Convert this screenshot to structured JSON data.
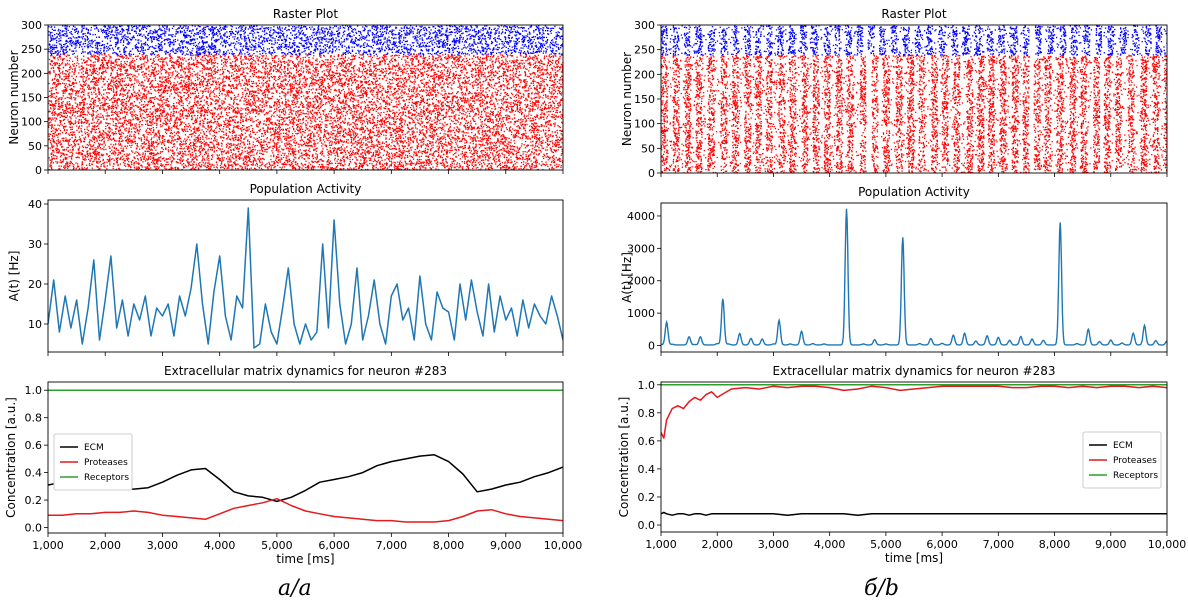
{
  "figure": {
    "caption_left": "а/a",
    "caption_right": "б/b"
  },
  "colors": {
    "inhibitory": "#0000ff",
    "excitatory": "#ff0000",
    "activity": "#1f77b4",
    "ecm": "#000000",
    "proteases": "#e41a1c",
    "receptors": "#2ca02c"
  },
  "chart_data": [
    {
      "panel": "a",
      "type": "scatter",
      "title": "Raster Plot",
      "xlabel": "",
      "ylabel": "Neuron number",
      "xlim": [
        1000,
        10000
      ],
      "ylim": [
        0,
        300
      ],
      "yticks": [
        0,
        50,
        100,
        150,
        200,
        250,
        300
      ],
      "ytick_labels": [
        "0",
        "50",
        "100",
        "150",
        "200",
        "250",
        "300"
      ],
      "series": [
        {
          "neurons": [
            0,
            240
          ],
          "color": "#ff0000",
          "pattern": "dense asynchronous"
        },
        {
          "neurons": [
            240,
            300
          ],
          "color": "#0000ff",
          "pattern": "dense asynchronous"
        }
      ]
    },
    {
      "panel": "a",
      "type": "line",
      "title": "Population Activity",
      "xlabel": "",
      "ylabel": "A(t) [Hz]",
      "xlim": [
        1000,
        10000
      ],
      "ylim": [
        3,
        41
      ],
      "yticks": [
        10,
        20,
        30,
        40
      ],
      "ytick_labels": [
        "10",
        "20",
        "30",
        "40"
      ],
      "x": [
        1000,
        1100,
        1200,
        1300,
        1400,
        1500,
        1600,
        1700,
        1800,
        1900,
        2000,
        2100,
        2200,
        2300,
        2400,
        2500,
        2600,
        2700,
        2800,
        2900,
        3000,
        3100,
        3200,
        3300,
        3400,
        3500,
        3600,
        3700,
        3800,
        3900,
        4000,
        4100,
        4200,
        4300,
        4400,
        4500,
        4600,
        4700,
        4800,
        4900,
        5000,
        5100,
        5200,
        5300,
        5400,
        5500,
        5600,
        5700,
        5800,
        5900,
        6000,
        6100,
        6200,
        6300,
        6400,
        6500,
        6600,
        6700,
        6800,
        6900,
        7000,
        7100,
        7200,
        7300,
        7400,
        7500,
        7600,
        7700,
        7800,
        7900,
        8000,
        8100,
        8200,
        8300,
        8400,
        8500,
        8600,
        8700,
        8800,
        8900,
        9000,
        9100,
        9200,
        9300,
        9400,
        9500,
        9600,
        9700,
        9800,
        9900,
        10000
      ],
      "series": [
        {
          "values": [
            10,
            21,
            8,
            17,
            9,
            16,
            5,
            14,
            26,
            6,
            16,
            27,
            9,
            16,
            7,
            15,
            11,
            17,
            7,
            14,
            12,
            15,
            7,
            17,
            12,
            19,
            30,
            15,
            5,
            18,
            27,
            12,
            6,
            17,
            14,
            39,
            4,
            5,
            15,
            8,
            5,
            14,
            24,
            10,
            5,
            10,
            6,
            8,
            30,
            9,
            36,
            15,
            5,
            10,
            24,
            6,
            12,
            21,
            10,
            5,
            17,
            20,
            11,
            14,
            6,
            22,
            10,
            6,
            18,
            14,
            13,
            6,
            20,
            11,
            21,
            13,
            7,
            20,
            8,
            17,
            11,
            14,
            7,
            16,
            9,
            15,
            12,
            10,
            17,
            12,
            6
          ]
        }
      ]
    },
    {
      "panel": "a",
      "type": "line",
      "title": "Extracellular matrix dynamics for neuron #283",
      "xlabel": "time [ms]",
      "ylabel": "Concentration [a.u.]",
      "xlim": [
        1000,
        10000
      ],
      "ylim": [
        -0.04,
        1.06
      ],
      "yticks": [
        0.0,
        0.2,
        0.4,
        0.6,
        0.8,
        1.0
      ],
      "ytick_labels": [
        "0.0",
        "0.2",
        "0.4",
        "0.6",
        "0.8",
        "1.0"
      ],
      "xticks": [
        1000,
        2000,
        3000,
        4000,
        5000,
        6000,
        7000,
        8000,
        9000,
        10000
      ],
      "xtick_labels": [
        "1,000",
        "2,000",
        "3,000",
        "4,000",
        "5,000",
        "6,000",
        "7,000",
        "8,000",
        "9,000",
        "10,000"
      ],
      "legend": {
        "position": "center-left",
        "entries": [
          "ECM",
          "Proteases",
          "Receptors"
        ]
      },
      "x": [
        1000,
        1250,
        1500,
        1750,
        2000,
        2250,
        2500,
        2750,
        3000,
        3250,
        3500,
        3750,
        4000,
        4250,
        4500,
        4750,
        5000,
        5250,
        5500,
        5750,
        6000,
        6250,
        6500,
        6750,
        7000,
        7250,
        7500,
        7750,
        8000,
        8250,
        8500,
        8750,
        9000,
        9250,
        9500,
        9750,
        10000
      ],
      "series": [
        {
          "name": "ECM",
          "values": [
            0.31,
            0.33,
            0.32,
            0.3,
            0.29,
            0.29,
            0.28,
            0.29,
            0.33,
            0.38,
            0.42,
            0.43,
            0.35,
            0.26,
            0.23,
            0.22,
            0.19,
            0.22,
            0.27,
            0.33,
            0.35,
            0.37,
            0.4,
            0.45,
            0.48,
            0.5,
            0.52,
            0.53,
            0.48,
            0.39,
            0.26,
            0.28,
            0.31,
            0.33,
            0.37,
            0.4,
            0.44
          ]
        },
        {
          "name": "Proteases",
          "values": [
            0.09,
            0.09,
            0.1,
            0.1,
            0.11,
            0.11,
            0.12,
            0.11,
            0.09,
            0.08,
            0.07,
            0.06,
            0.1,
            0.14,
            0.16,
            0.18,
            0.21,
            0.16,
            0.12,
            0.1,
            0.08,
            0.07,
            0.06,
            0.05,
            0.05,
            0.04,
            0.04,
            0.04,
            0.05,
            0.08,
            0.12,
            0.13,
            0.1,
            0.08,
            0.07,
            0.06,
            0.05
          ]
        },
        {
          "name": "Receptors",
          "values": [
            1.0,
            1.0,
            1.0,
            1.0,
            1.0,
            1.0,
            1.0,
            1.0,
            1.0,
            1.0,
            1.0,
            1.0,
            1.0,
            1.0,
            1.0,
            1.0,
            1.0,
            1.0,
            1.0,
            1.0,
            1.0,
            1.0,
            1.0,
            1.0,
            1.0,
            1.0,
            1.0,
            1.0,
            1.0,
            1.0,
            1.0,
            1.0,
            1.0,
            1.0,
            1.0,
            1.0,
            1.0
          ]
        }
      ]
    },
    {
      "panel": "b",
      "type": "scatter",
      "title": "Raster Plot",
      "xlabel": "",
      "ylabel": "Neuron number",
      "xlim": [
        1000,
        10000
      ],
      "ylim": [
        0,
        300
      ],
      "yticks": [
        0,
        50,
        100,
        150,
        200,
        250,
        300
      ],
      "ytick_labels": [
        "0",
        "50",
        "100",
        "150",
        "200",
        "250",
        "300"
      ],
      "series": [
        {
          "neurons": [
            0,
            240
          ],
          "color": "#ff0000",
          "pattern": "synchronized bursts"
        },
        {
          "neurons": [
            240,
            300
          ],
          "color": "#0000ff",
          "pattern": "synchronized bursts"
        }
      ]
    },
    {
      "panel": "b",
      "type": "line",
      "title": "Population Activity",
      "xlabel": "",
      "ylabel": "A(t) [Hz]",
      "xlim": [
        1000,
        10000
      ],
      "ylim": [
        -200,
        4400
      ],
      "yticks": [
        0,
        1000,
        2000,
        3000,
        4000
      ],
      "ytick_labels": [
        "0",
        "1000",
        "2000",
        "3000",
        "4000"
      ],
      "peaks": [
        [
          1000,
          10
        ],
        [
          1100,
          700
        ],
        [
          1200,
          20
        ],
        [
          1500,
          250
        ],
        [
          1600,
          10
        ],
        [
          1700,
          250
        ],
        [
          2000,
          40
        ],
        [
          2100,
          1420
        ],
        [
          2200,
          30
        ],
        [
          2400,
          350
        ],
        [
          2600,
          200
        ],
        [
          2800,
          180
        ],
        [
          3000,
          30
        ],
        [
          3100,
          760
        ],
        [
          3300,
          30
        ],
        [
          3500,
          420
        ],
        [
          3700,
          40
        ],
        [
          3900,
          30
        ],
        [
          4300,
          4200
        ],
        [
          4600,
          30
        ],
        [
          4800,
          160
        ],
        [
          5000,
          30
        ],
        [
          5300,
          3320
        ],
        [
          5600,
          40
        ],
        [
          5800,
          200
        ],
        [
          6000,
          50
        ],
        [
          6200,
          300
        ],
        [
          6400,
          360
        ],
        [
          6600,
          120
        ],
        [
          6800,
          280
        ],
        [
          7000,
          230
        ],
        [
          7200,
          140
        ],
        [
          7400,
          260
        ],
        [
          7600,
          180
        ],
        [
          7800,
          140
        ],
        [
          8100,
          3780
        ],
        [
          8400,
          40
        ],
        [
          8600,
          480
        ],
        [
          8800,
          100
        ],
        [
          9000,
          150
        ],
        [
          9200,
          60
        ],
        [
          9400,
          360
        ],
        [
          9600,
          600
        ],
        [
          9800,
          130
        ],
        [
          10000,
          120
        ]
      ]
    },
    {
      "panel": "b",
      "type": "line",
      "title": "Extracellular matrix dynamics for neuron #283",
      "xlabel": "time [ms]",
      "ylabel": "Concentration [a.u.]",
      "xlim": [
        1000,
        10000
      ],
      "ylim": [
        -0.05,
        1.02
      ],
      "yticks": [
        0.0,
        0.2,
        0.4,
        0.6,
        0.8,
        1.0
      ],
      "ytick_labels": [
        "0.0",
        "0.2",
        "0.4",
        "0.6",
        "0.8",
        "1.0"
      ],
      "xticks": [
        1000,
        2000,
        3000,
        4000,
        5000,
        6000,
        7000,
        8000,
        9000,
        10000
      ],
      "xtick_labels": [
        "1,000",
        "2,000",
        "3,000",
        "4,000",
        "5,000",
        "6,000",
        "7,000",
        "8,000",
        "9,000",
        "10,000"
      ],
      "legend": {
        "position": "center-right",
        "entries": [
          "ECM",
          "Proteases",
          "Receptors"
        ]
      },
      "x": [
        1000,
        1050,
        1100,
        1200,
        1300,
        1400,
        1500,
        1600,
        1700,
        1800,
        1900,
        2000,
        2250,
        2500,
        2750,
        3000,
        3250,
        3500,
        3750,
        4000,
        4250,
        4500,
        4750,
        5000,
        5250,
        5500,
        5750,
        6000,
        6250,
        6500,
        6750,
        7000,
        7250,
        7500,
        7750,
        8000,
        8250,
        8500,
        8750,
        9000,
        9250,
        9500,
        9750,
        10000
      ],
      "series": [
        {
          "name": "ECM",
          "values": [
            0.08,
            0.09,
            0.08,
            0.07,
            0.08,
            0.08,
            0.07,
            0.08,
            0.08,
            0.07,
            0.08,
            0.08,
            0.08,
            0.08,
            0.08,
            0.08,
            0.07,
            0.08,
            0.08,
            0.08,
            0.08,
            0.07,
            0.08,
            0.08,
            0.08,
            0.08,
            0.08,
            0.08,
            0.08,
            0.08,
            0.08,
            0.08,
            0.08,
            0.08,
            0.08,
            0.08,
            0.08,
            0.08,
            0.08,
            0.08,
            0.08,
            0.08,
            0.08,
            0.08
          ]
        },
        {
          "name": "Proteases",
          "values": [
            0.66,
            0.62,
            0.75,
            0.83,
            0.85,
            0.83,
            0.88,
            0.91,
            0.89,
            0.93,
            0.95,
            0.91,
            0.97,
            0.98,
            0.97,
            0.99,
            0.98,
            0.99,
            0.99,
            0.98,
            0.96,
            0.97,
            0.99,
            0.98,
            0.96,
            0.97,
            0.98,
            0.99,
            0.99,
            0.99,
            0.99,
            0.99,
            0.98,
            0.98,
            0.99,
            0.99,
            0.98,
            0.99,
            0.98,
            0.99,
            0.99,
            0.98,
            0.99,
            0.98
          ]
        },
        {
          "name": "Receptors",
          "values": [
            1.0,
            1.0,
            1.0,
            1.0,
            1.0,
            1.0,
            1.0,
            1.0,
            1.0,
            1.0,
            1.0,
            1.0,
            1.0,
            1.0,
            1.0,
            1.0,
            1.0,
            1.0,
            1.0,
            1.0,
            1.0,
            1.0,
            1.0,
            1.0,
            1.0,
            1.0,
            1.0,
            1.0,
            1.0,
            1.0,
            1.0,
            1.0,
            1.0,
            1.0,
            1.0,
            1.0,
            1.0,
            1.0,
            1.0,
            1.0,
            1.0,
            1.0,
            1.0,
            1.0
          ]
        }
      ]
    }
  ]
}
